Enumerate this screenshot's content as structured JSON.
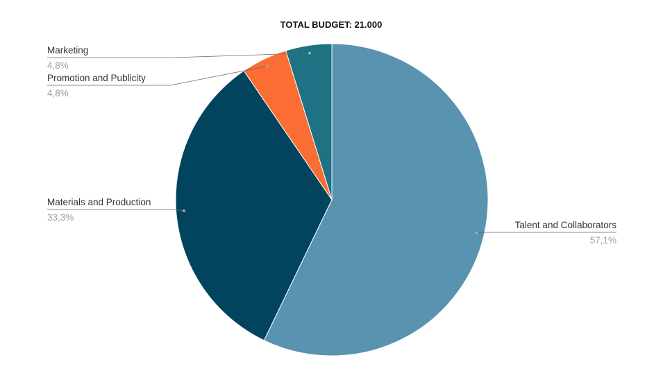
{
  "chart_data": {
    "type": "pie",
    "title": "TOTAL BUDGET: 21.000",
    "slices": [
      {
        "label": "Talent and Collaborators",
        "value": 12000,
        "percent_label": "57,1%",
        "color": "#5a93b0"
      },
      {
        "label": "Materials and Production",
        "value": 7000,
        "percent_label": "33,3%",
        "color": "#02435e"
      },
      {
        "label": "Promotion and Publicity",
        "value": 1000,
        "percent_label": "4,8%",
        "color": "#fc6d33"
      },
      {
        "label": "Marketing",
        "value": 1000,
        "percent_label": "4,8%",
        "color": "#1e7283"
      }
    ],
    "start_angle_deg": 0,
    "direction": "clockwise",
    "legend": "none",
    "label_style": "outside with leader lines"
  }
}
